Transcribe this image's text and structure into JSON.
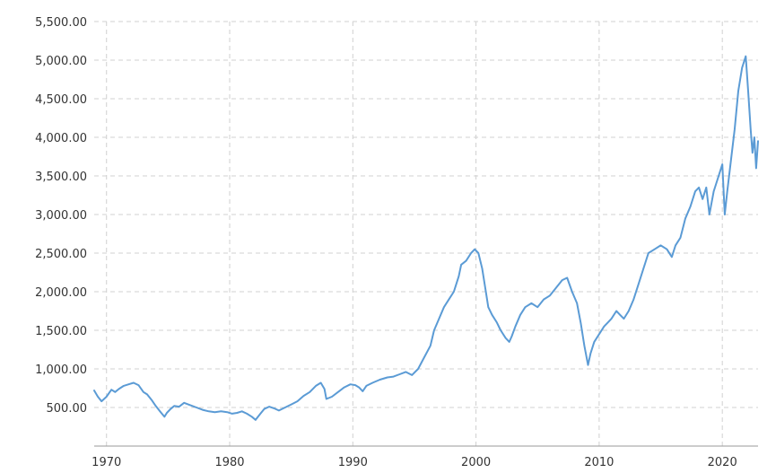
{
  "chart_data": {
    "type": "line",
    "title": "",
    "xlabel": "",
    "ylabel": "",
    "xlim": [
      1969.0,
      2022.9
    ],
    "ylim": [
      0,
      5500
    ],
    "yticks": [
      500,
      1000,
      1500,
      2000,
      2500,
      3000,
      3500,
      4000,
      4500,
      5000,
      5500
    ],
    "ytick_labels": [
      "500.00",
      "1,000.00",
      "1,500.00",
      "2,000.00",
      "2,500.00",
      "3,000.00",
      "3,500.00",
      "4,000.00",
      "4,500.00",
      "5,000.00",
      "5,500.00"
    ],
    "xticks": [
      1970,
      1980,
      1990,
      2000,
      2010,
      2020
    ],
    "xtick_labels": [
      "1970",
      "1980",
      "1990",
      "2000",
      "2010",
      "2020"
    ],
    "grid": true,
    "line_color": "#5b9bd5",
    "series": [
      {
        "x": [
          1969.0,
          1969.3,
          1969.6,
          1970.0,
          1970.4,
          1970.7,
          1971.0,
          1971.4,
          1971.8,
          1972.2,
          1972.6,
          1973.0,
          1973.3,
          1973.7,
          1974.0,
          1974.4,
          1974.7,
          1974.9,
          1975.2,
          1975.5,
          1975.9,
          1976.3,
          1976.8,
          1977.3,
          1977.8,
          1978.3,
          1978.8,
          1979.3,
          1979.8,
          1980.2,
          1980.6,
          1981.0,
          1981.4,
          1981.8,
          1982.1,
          1982.5,
          1982.8,
          1983.2,
          1983.6,
          1984.0,
          1984.5,
          1985.0,
          1985.5,
          1986.0,
          1986.5,
          1987.0,
          1987.4,
          1987.7,
          1987.85,
          1988.3,
          1988.8,
          1989.3,
          1989.8,
          1990.2,
          1990.5,
          1990.8,
          1991.1,
          1991.6,
          1992.2,
          1992.8,
          1993.3,
          1993.8,
          1994.3,
          1994.8,
          1995.3,
          1995.8,
          1996.3,
          1996.6,
          1997.0,
          1997.4,
          1997.8,
          1998.2,
          1998.6,
          1998.8,
          1999.2,
          1999.6,
          1999.9,
          2000.2,
          2000.5,
          2000.8,
          2001.0,
          2001.3,
          2001.7,
          2002.0,
          2002.4,
          2002.7,
          2002.9,
          2003.2,
          2003.6,
          2004.0,
          2004.5,
          2005.0,
          2005.5,
          2006.0,
          2006.5,
          2007.0,
          2007.4,
          2007.8,
          2008.2,
          2008.5,
          2008.8,
          2009.1,
          2009.3,
          2009.6,
          2010.0,
          2010.4,
          2010.7,
          2011.0,
          2011.4,
          2011.7,
          2012.0,
          2012.4,
          2012.8,
          2013.2,
          2013.6,
          2014.0,
          2014.5,
          2015.0,
          2015.5,
          2015.9,
          2016.2,
          2016.6,
          2017.0,
          2017.4,
          2017.8,
          2018.1,
          2018.4,
          2018.7,
          2018.95,
          2019.3,
          2019.7,
          2020.0,
          2020.2,
          2020.4,
          2020.7,
          2021.0,
          2021.3,
          2021.6,
          2021.9,
          2022.1,
          2022.3,
          2022.45,
          2022.6,
          2022.75,
          2022.9
        ],
        "values": [
          720,
          640,
          580,
          640,
          730,
          700,
          740,
          780,
          800,
          820,
          790,
          700,
          670,
          590,
          520,
          440,
          380,
          430,
          480,
          520,
          510,
          560,
          530,
          500,
          470,
          450,
          440,
          450,
          440,
          420,
          430,
          450,
          420,
          380,
          340,
          420,
          480,
          510,
          490,
          460,
          500,
          540,
          580,
          650,
          700,
          780,
          820,
          740,
          610,
          640,
          700,
          760,
          800,
          790,
          760,
          710,
          780,
          820,
          860,
          890,
          900,
          930,
          960,
          920,
          1000,
          1150,
          1300,
          1500,
          1650,
          1800,
          1900,
          2000,
          2200,
          2350,
          2400,
          2500,
          2550,
          2500,
          2300,
          2000,
          1800,
          1700,
          1600,
          1500,
          1400,
          1350,
          1420,
          1550,
          1700,
          1800,
          1850,
          1800,
          1900,
          1950,
          2050,
          2150,
          2180,
          2000,
          1850,
          1600,
          1300,
          1050,
          1200,
          1350,
          1450,
          1550,
          1600,
          1650,
          1750,
          1700,
          1650,
          1750,
          1900,
          2100,
          2300,
          2500,
          2550,
          2600,
          2550,
          2450,
          2600,
          2700,
          2950,
          3100,
          3300,
          3350,
          3200,
          3350,
          3000,
          3300,
          3500,
          3650,
          3000,
          3300,
          3700,
          4100,
          4600,
          4900,
          5050,
          4600,
          4100,
          3800,
          4000,
          3600,
          3950
        ]
      }
    ]
  }
}
